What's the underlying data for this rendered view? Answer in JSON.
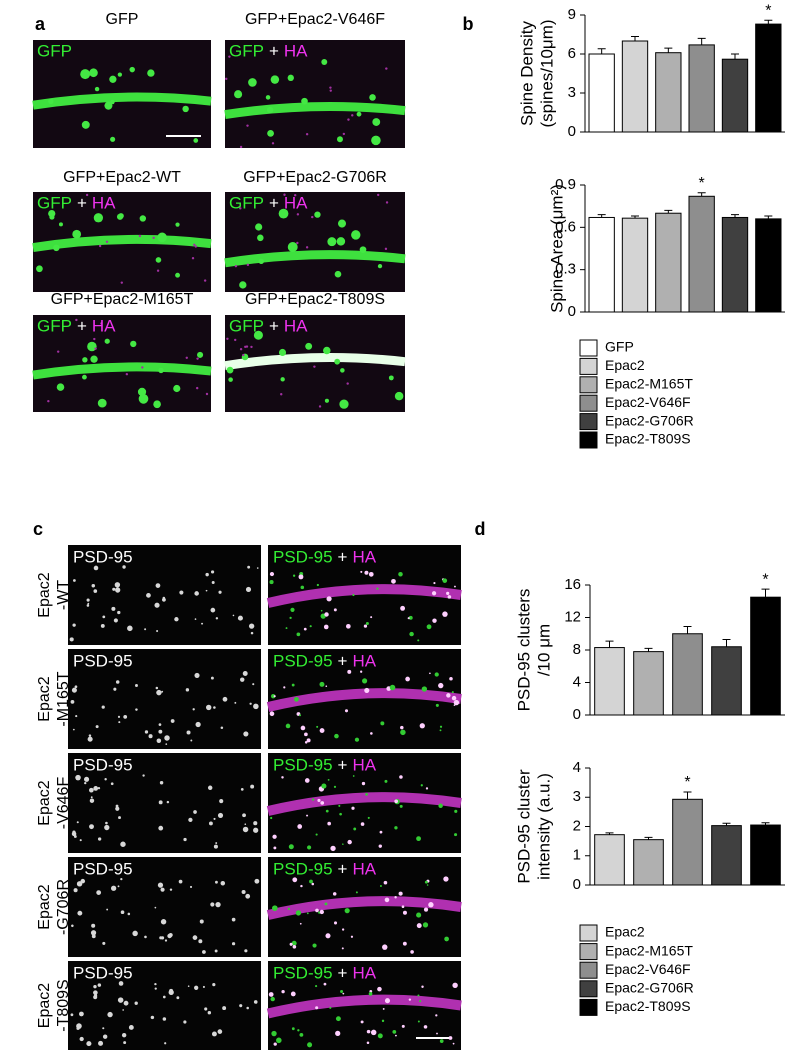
{
  "panel_a": {
    "label": "a",
    "images": [
      {
        "title": "GFP",
        "channels": [
          "GFP"
        ]
      },
      {
        "title": "GFP+Epac2-V646F",
        "channels": [
          "GFP",
          "+",
          "HA"
        ]
      },
      {
        "title": "GFP+Epac2-WT",
        "channels": [
          "GFP",
          "+",
          "HA"
        ]
      },
      {
        "title": "GFP+Epac2-G706R",
        "channels": [
          "GFP",
          "+",
          "HA"
        ]
      },
      {
        "title": "GFP+Epac2-M165T",
        "channels": [
          "GFP",
          "+",
          "HA"
        ]
      },
      {
        "title": "GFP+Epac2-T809S",
        "channels": [
          "GFP",
          "+",
          "HA"
        ]
      }
    ]
  },
  "panel_b": {
    "label": "b"
  },
  "panel_c": {
    "label": "c",
    "rows": [
      {
        "label": [
          "Epac2",
          "-WT"
        ],
        "left": "PSD-95",
        "right": [
          "PSD-95",
          "+",
          "HA"
        ]
      },
      {
        "label": [
          "Epac2",
          "-M165T"
        ],
        "left": "PSD-95",
        "right": [
          "PSD-95",
          "+",
          "HA"
        ]
      },
      {
        "label": [
          "Epac2",
          "-V646F"
        ],
        "left": "PSD-95",
        "right": [
          "PSD-95",
          "+",
          "HA"
        ]
      },
      {
        "label": [
          "Epac2",
          "-G706R"
        ],
        "left": "PSD-95",
        "right": [
          "PSD-95",
          "+",
          "HA"
        ]
      },
      {
        "label": [
          "Epac2",
          "-T809S"
        ],
        "left": "PSD-95",
        "right": [
          "PSD-95",
          "+",
          "HA"
        ]
      }
    ]
  },
  "panel_d": {
    "label": "d"
  },
  "chart_data": [
    {
      "type": "bar",
      "ylabel": [
        "Spine Density",
        "(spines/10μm)"
      ],
      "categories": [
        "GFP",
        "Epac2",
        "Epac2-M165T",
        "Epac2-V646F",
        "Epac2-G706R",
        "Epac2-T809S"
      ],
      "colors": [
        "#ffffff",
        "#d4d4d4",
        "#b0b0b0",
        "#8e8e8e",
        "#404040",
        "#000000"
      ],
      "values": [
        6.0,
        7.0,
        6.1,
        6.7,
        5.6,
        8.3
      ],
      "errors": [
        0.4,
        0.35,
        0.35,
        0.5,
        0.4,
        0.3
      ],
      "significance": [
        null,
        null,
        null,
        null,
        null,
        "*"
      ],
      "ylim": [
        0,
        9
      ],
      "yticks": [
        0,
        3,
        6,
        9
      ]
    },
    {
      "type": "bar",
      "ylabel": [
        "Spine Area (μm²)"
      ],
      "colors": [
        "#ffffff",
        "#d4d4d4",
        "#b0b0b0",
        "#8e8e8e",
        "#404040",
        "#000000"
      ],
      "values": [
        0.67,
        0.665,
        0.7,
        0.82,
        0.67,
        0.66
      ],
      "errors": [
        0.02,
        0.015,
        0.02,
        0.025,
        0.02,
        0.02
      ],
      "significance": [
        null,
        null,
        null,
        "*",
        null,
        null
      ],
      "ylim": [
        0,
        0.9
      ],
      "yticks": [
        0,
        0.3,
        0.6,
        0.9
      ]
    },
    {
      "type": "bar",
      "ylabel": [
        "PSD-95 clusters",
        "/10 μm"
      ],
      "categories": [
        "Epac2",
        "Epac2-M165T",
        "Epac2-V646F",
        "Epac2-G706R",
        "Epac2-T809S"
      ],
      "colors": [
        "#d4d4d4",
        "#b0b0b0",
        "#8e8e8e",
        "#404040",
        "#000000"
      ],
      "values": [
        8.3,
        7.8,
        10.0,
        8.4,
        14.5
      ],
      "errors": [
        0.8,
        0.4,
        0.9,
        0.9,
        1.0
      ],
      "significance": [
        null,
        null,
        null,
        null,
        "*"
      ],
      "ylim": [
        0,
        16
      ],
      "yticks": [
        0,
        4,
        8,
        12,
        16
      ]
    },
    {
      "type": "bar",
      "ylabel": [
        "PSD-95 cluster",
        "intensity (a.u.)"
      ],
      "colors": [
        "#d4d4d4",
        "#b0b0b0",
        "#8e8e8e",
        "#404040",
        "#000000"
      ],
      "values": [
        1.72,
        1.55,
        2.93,
        2.03,
        2.05
      ],
      "errors": [
        0.06,
        0.08,
        0.25,
        0.08,
        0.08
      ],
      "significance": [
        null,
        null,
        "*",
        null,
        null
      ],
      "ylim": [
        0,
        4
      ],
      "yticks": [
        0,
        1,
        2,
        3,
        4
      ]
    }
  ]
}
